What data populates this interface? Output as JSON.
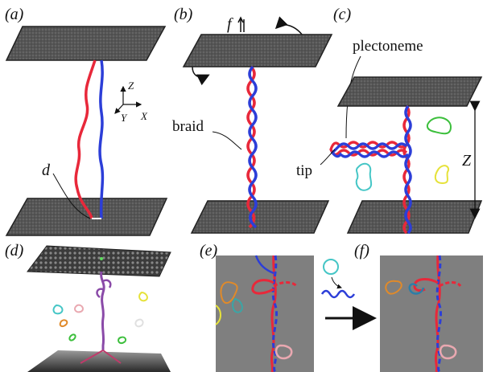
{
  "panels": {
    "a": "(a)",
    "b": "(b)",
    "c": "(c)",
    "d": "(d)",
    "e": "(e)",
    "f": "(f)"
  },
  "annotations": {
    "d_label": "d",
    "f_label": "f",
    "braid": "braid",
    "plectoneme": "plectoneme",
    "tip": "tip",
    "z_big": "Z"
  },
  "axes": {
    "z": "Z",
    "y": "Y",
    "x": "X"
  },
  "colors": {
    "strand_red": "#e8283a",
    "strand_blue": "#2c3ed8",
    "plate": "#5a5a5a",
    "sim_bg": "#7f7f7f",
    "loop_green": "#3cbf3c",
    "loop_yellow": "#e6e23a",
    "loop_cyan": "#45c6c6",
    "loop_orange": "#e08a2a",
    "loop_pink": "#e9a8b0"
  }
}
